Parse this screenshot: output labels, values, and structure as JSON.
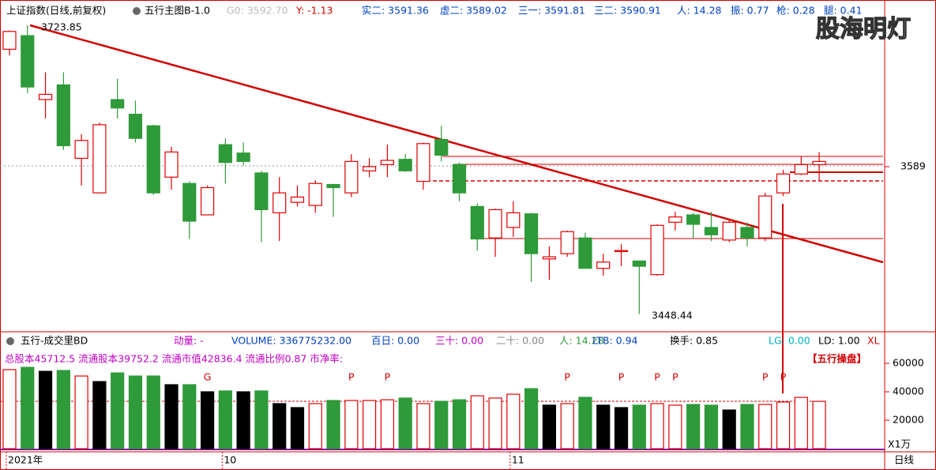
{
  "header": [
    "上证指数(日线,前复权)",
    "五行主图B-1.0",
    "G0: 3592.70",
    "Y: -1.13",
    "实二: 3591.36",
    "虚二: 3589.02",
    "三一: 3591.81",
    "三二: 3590.91",
    "人: 14.28",
    "振: 0.77",
    "枪: 0.28",
    "腿: 0.41"
  ],
  "watermark": "股海明灯",
  "volume_header": [
    "五行-成交里BD",
    "动量: -",
    "VOLUME: 336775232.00",
    "百日: 0.00",
    "三十: 0.00",
    "二十: 0.00",
    "人: 14.28",
    "LTB: 0.94",
    "换手: 0.85",
    "LG: 0.00",
    "LD: 1.00",
    "XL"
  ],
  "volume_info": "总股本45712.5 流通股本39752.2 流通市值42836.4 流通比例0.87 市净率:",
  "volume_badge": "【五行操盘】",
  "period": "日线",
  "chart_data": [
    {
      "type": "candlestick",
      "up_color": "#e00000",
      "down_color": "#2e9a3a",
      "open": [
        3701,
        3714,
        3653,
        3667,
        3597,
        3564,
        3653,
        3639,
        3628,
        3579,
        3573,
        3543,
        3610,
        3602,
        3583,
        3545,
        3555,
        3552,
        3572,
        3564,
        3585,
        3591,
        3596,
        3575,
        3615,
        3591,
        3551,
        3521,
        3531,
        3544,
        3501,
        3506,
        3521,
        3492,
        3508,
        3499,
        3486,
        3536,
        3543,
        3531,
        3519,
        3531,
        3521,
        3564,
        3582,
        3591
      ],
      "high": [
        3719,
        3723.85,
        3679,
        3679,
        3620,
        3631,
        3673,
        3652,
        3629,
        3608,
        3575,
        3571,
        3616,
        3612,
        3585,
        3579,
        3571,
        3576,
        3572,
        3601,
        3597,
        3610,
        3601,
        3612,
        3628,
        3593,
        3554,
        3549,
        3556,
        3545,
        3513,
        3528,
        3526,
        3506,
        3515,
        3499,
        3534,
        3546,
        3545,
        3546,
        3539,
        3536,
        3564,
        3586,
        3599,
        3603
      ],
      "low": [
        3695,
        3659,
        3635,
        3605,
        3571,
        3564,
        3635,
        3612,
        3562,
        3567,
        3520,
        3543,
        3573,
        3590,
        3517,
        3518,
        3551,
        3545,
        3541,
        3560,
        3579,
        3579,
        3584,
        3567,
        3594,
        3556,
        3509,
        3503,
        3522,
        3479,
        3481,
        3503,
        3492,
        3485,
        3494,
        3448.44,
        3485,
        3528,
        3521,
        3518,
        3517,
        3513,
        3518,
        3561,
        3581,
        3575
      ],
      "close": [
        3718,
        3665,
        3658,
        3609,
        3614,
        3629,
        3645,
        3616,
        3564,
        3603,
        3537,
        3569,
        3593,
        3594,
        3548,
        3564,
        3560,
        3573,
        3569,
        3594,
        3589,
        3595,
        3585,
        3611,
        3600,
        3564,
        3520,
        3548,
        3545,
        3506,
        3503,
        3527,
        3492,
        3498,
        3509,
        3494,
        3533,
        3541,
        3534,
        3524,
        3536,
        3521,
        3561,
        3582,
        3591,
        3594
      ],
      "ylim": [
        3433,
        3748
      ],
      "yticks": [
        3589
      ]
    },
    {
      "type": "bar",
      "hollow_color": "#e00000",
      "categories": [
        "2021年",
        null,
        null,
        null,
        null,
        null,
        null,
        null,
        null,
        null,
        null,
        null,
        "10",
        null,
        null,
        null,
        null,
        null,
        null,
        null,
        null,
        null,
        null,
        null,
        null,
        null,
        null,
        null,
        "11",
        null,
        null,
        null,
        null,
        null,
        null,
        null,
        null,
        null,
        null,
        null,
        null,
        null,
        null,
        null,
        null,
        null
      ],
      "values": [
        55600,
        57200,
        54400,
        55000,
        51100,
        47200,
        53300,
        51100,
        51100,
        45000,
        45000,
        40000,
        40600,
        40000,
        40600,
        31700,
        28900,
        31700,
        33900,
        33900,
        33900,
        34400,
        35600,
        31700,
        33300,
        34400,
        37200,
        35600,
        38300,
        42200,
        30600,
        31700,
        36100,
        30600,
        28900,
        30600,
        31700,
        30600,
        31100,
        30600,
        27200,
        31100,
        31100,
        32800,
        36100,
        33300
      ],
      "colors": [
        "#e00000",
        "#2e9a3a",
        "#000000",
        "#2e9a3a",
        "#e00000",
        "#000000",
        "#2e9a3a",
        "#2e9a3a",
        "#2e9a3a",
        "#000000",
        "#2e9a3a",
        "#000000",
        "#2e9a3a",
        "#000000",
        "#2e9a3a",
        "#000000",
        "#000000",
        "#e00000",
        "#2e9a3a",
        "#e00000",
        "#e00000",
        "#e00000",
        "#2e9a3a",
        "#e00000",
        "#2e9a3a",
        "#2e9a3a",
        "#e00000",
        "#e00000",
        "#e00000",
        "#2e9a3a",
        "#000000",
        "#e00000",
        "#2e9a3a",
        "#000000",
        "#000000",
        "#2e9a3a",
        "#e00000",
        "#e00000",
        "#2e9a3a",
        "#2e9a3a",
        "#000000",
        "#2e9a3a",
        "#e00000",
        "#e00000",
        "#e00000",
        "#e00000"
      ],
      "markers": [
        null,
        null,
        null,
        null,
        null,
        null,
        null,
        null,
        null,
        null,
        null,
        "G",
        null,
        null,
        null,
        null,
        null,
        null,
        null,
        "P",
        null,
        "P",
        null,
        null,
        null,
        null,
        null,
        null,
        null,
        null,
        null,
        "P",
        null,
        null,
        "P",
        null,
        "P",
        "P",
        null,
        null,
        null,
        null,
        "P",
        "P",
        null,
        null
      ],
      "ylim": [
        0,
        70000
      ],
      "yticks": [
        20000,
        40000,
        60000
      ],
      "unit": "X1万"
    }
  ]
}
